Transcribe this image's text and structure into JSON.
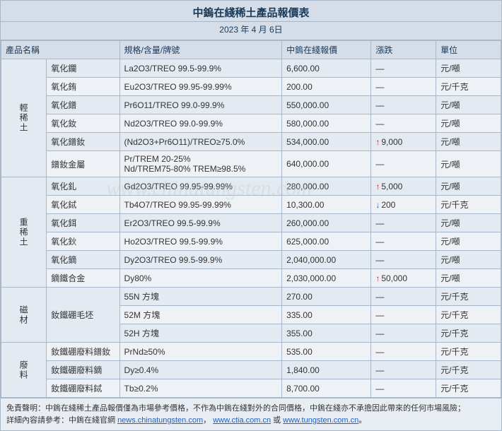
{
  "title": "中鎢在綫稀土產品報價表",
  "date": "2023 年 4 月 6日",
  "headers": {
    "name": "產品名稱",
    "spec": "規格/含量/牌號",
    "price": "中鎢在綫報價",
    "change": "漲跌",
    "unit": "單位"
  },
  "categories": [
    {
      "label": "輕稀土",
      "rows": [
        {
          "name": "氧化鑭",
          "spec": "La2O3/TREO 99.5-99.9%",
          "price": "6,600.00",
          "change": "—",
          "unit": "元/噸"
        },
        {
          "name": "氧化銪",
          "spec": "Eu2O3/TREO 99.95-99.99%",
          "price": "200.00",
          "change": "—",
          "unit": "元/千克"
        },
        {
          "name": "氧化鐠",
          "spec": "Pr6O11/TREO 99.0-99.9%",
          "price": "550,000.00",
          "change": "—",
          "unit": "元/噸"
        },
        {
          "name": "氧化釹",
          "spec": "Nd2O3/TREO 99.0-99.9%",
          "price": "580,000.00",
          "change": "—",
          "unit": "元/噸"
        },
        {
          "name": "氧化鐠釹",
          "spec": "(Nd2O3+Pr6O11)/TREO≥75.0%",
          "price": "534,000.00",
          "change": "9,000",
          "dir": "up",
          "unit": "元/噸"
        },
        {
          "name": "鐠釹金屬",
          "spec": "Pr/TREM 20-25%\nNd/TREM75-80% TREM≥98.5%",
          "price": "640,000.00",
          "change": "—",
          "unit": "元/噸"
        }
      ]
    },
    {
      "label": "重稀土",
      "rows": [
        {
          "name": "氧化釓",
          "spec": "Gd2O3/TREO 99.95-99.99%",
          "price": "280,000.00",
          "change": "5,000",
          "dir": "up",
          "unit": "元/噸"
        },
        {
          "name": "氧化鋱",
          "spec": "Tb4O7/TREO 99.95-99.99%",
          "price": "10,300.00",
          "change": "200",
          "dir": "down",
          "unit": "元/千克"
        },
        {
          "name": "氧化鉺",
          "spec": "Er2O3/TREO 99.5-99.9%",
          "price": "260,000.00",
          "change": "—",
          "unit": "元/噸"
        },
        {
          "name": "氧化鈥",
          "spec": "Ho2O3/TREO 99.5-99.9%",
          "price": "625,000.00",
          "change": "—",
          "unit": "元/噸"
        },
        {
          "name": "氧化鏑",
          "spec": "Dy2O3/TREO 99.5-99.9%",
          "price": "2,040,000.00",
          "change": "—",
          "unit": "元/噸"
        },
        {
          "name": "鏑鐵合金",
          "spec": "Dy80%",
          "price": "2,030,000.00",
          "change": "50,000",
          "dir": "up",
          "unit": "元/噸"
        }
      ]
    },
    {
      "label": "磁材",
      "rows": [
        {
          "name": "釹鐵硼毛坯",
          "namerowspan": 3,
          "spec": "55N 方塊",
          "price": "270.00",
          "change": "—",
          "unit": "元/千克"
        },
        {
          "spec": "52M 方塊",
          "price": "335.00",
          "change": "—",
          "unit": "元/千克"
        },
        {
          "spec": "52H 方塊",
          "price": "355.00",
          "change": "—",
          "unit": "元/千克"
        }
      ]
    },
    {
      "label": "廢料",
      "rows": [
        {
          "name": "釹鐵硼廢料鐠釹",
          "spec": "PrNd≥50%",
          "price": "535.00",
          "change": "—",
          "unit": "元/千克"
        },
        {
          "name": "釹鐵硼廢料鏑",
          "spec": "Dy≥0.4%",
          "price": "1,840.00",
          "change": "—",
          "unit": "元/千克"
        },
        {
          "name": "釹鐵硼廢料鋱",
          "spec": "Tb≥0.2%",
          "price": "8,700.00",
          "change": "—",
          "unit": "元/千克"
        }
      ]
    }
  ],
  "footer": {
    "disclaimer": "免責聲明：中鎢在綫稀土產品報價僅為市場參考價格，不作為中鎢在綫對外的合同價格，中鎢在綫亦不承擔因此帶來的任何市場風險；",
    "detail_prefix": "詳細內容請參考：中鎢在綫官網 ",
    "links": [
      "news.chinatungsten.com",
      "www.ctia.com.cn",
      "www.tungsten.com.cn"
    ],
    "sep1": "，",
    "sep2": " 或 ",
    "suffix": "。"
  },
  "watermark": "www.chinatungsten.com"
}
